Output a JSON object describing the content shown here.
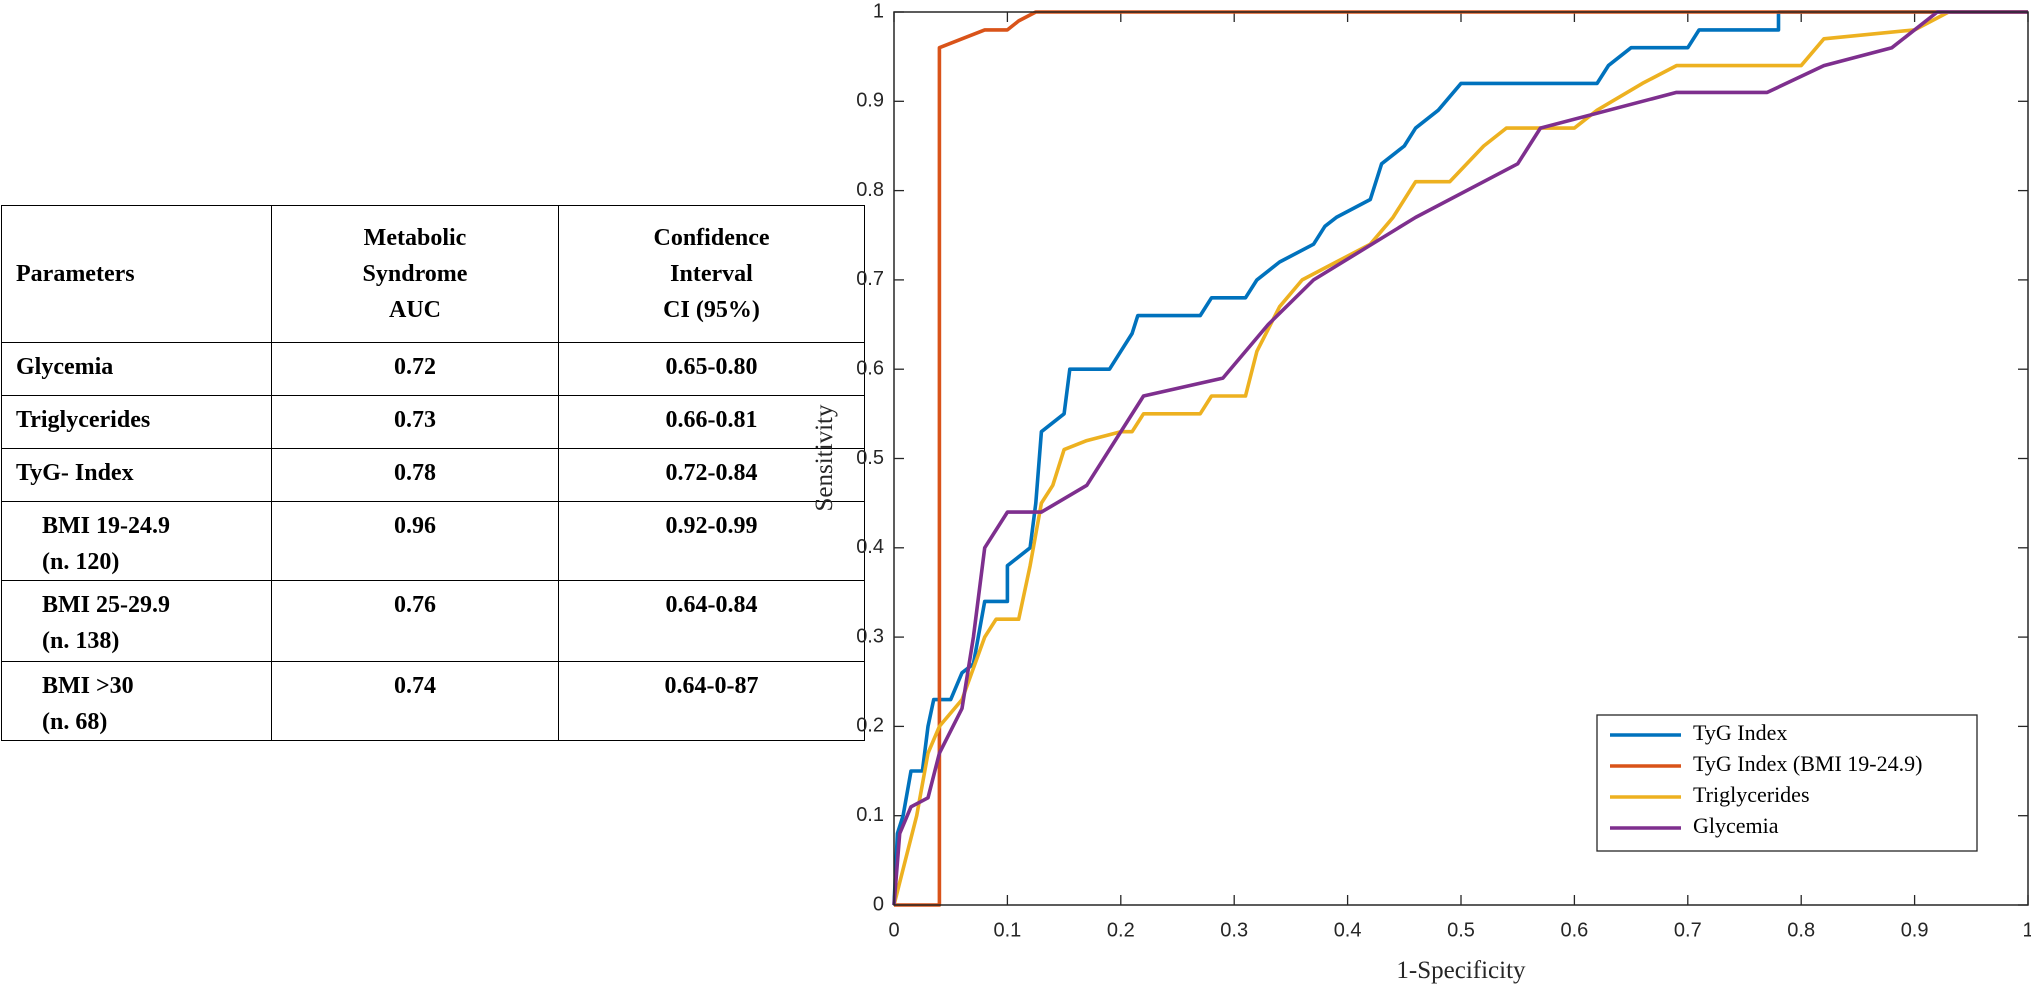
{
  "table": {
    "header": [
      "Parameters",
      [
        "Metabolic",
        "Syndrome",
        "AUC"
      ],
      [
        "Confidence",
        "Interval",
        "CI (95%)"
      ]
    ],
    "rows": [
      [
        [
          "Glycemia"
        ],
        [
          "0.72"
        ],
        [
          "0.65-0.80"
        ]
      ],
      [
        [
          "Triglycerides"
        ],
        [
          "0.73"
        ],
        [
          "0.66-0.81"
        ]
      ],
      [
        [
          "TyG- Index"
        ],
        [
          "0.78"
        ],
        [
          "0.72-0.84"
        ]
      ],
      [
        [
          "BMI 19-24.9",
          "(n. 120)"
        ],
        [
          "0.96"
        ],
        [
          "0.92-0.99"
        ]
      ],
      [
        [
          "BMI 25-29.9",
          "(n. 138)"
        ],
        [
          "0.76"
        ],
        [
          "0.64-0.84"
        ]
      ],
      [
        [
          "BMI >30",
          "(n. 68)"
        ],
        [
          "0.74"
        ],
        [
          "0.64-0-87"
        ]
      ]
    ]
  },
  "chart_data": {
    "type": "line",
    "x_label": "1-Specificity",
    "y_label": "Sensitivity",
    "xlim": [
      0,
      1
    ],
    "ylim": [
      0,
      1
    ],
    "xticks": [
      0,
      0.1,
      0.2,
      0.3,
      0.4,
      0.5,
      0.6,
      0.7,
      0.8,
      0.9,
      1
    ],
    "yticks": [
      0,
      0.1,
      0.2,
      0.3,
      0.4,
      0.5,
      0.6,
      0.7,
      0.8,
      0.9,
      1
    ],
    "legend": "southeast",
    "series": [
      {
        "name": "TyG Index",
        "color": "#0072BD",
        "x": [
          0,
          0.003,
          0.008,
          0.015,
          0.025,
          0.03,
          0.035,
          0.05,
          0.06,
          0.07,
          0.08,
          0.1,
          0.1,
          0.12,
          0.125,
          0.13,
          0.15,
          0.155,
          0.19,
          0.2,
          0.21,
          0.215,
          0.27,
          0.28,
          0.31,
          0.32,
          0.34,
          0.37,
          0.38,
          0.39,
          0.42,
          0.43,
          0.45,
          0.46,
          0.48,
          0.5,
          0.62,
          0.63,
          0.65,
          0.7,
          0.71,
          0.78,
          0.78,
          1
        ],
        "values": [
          0,
          0.08,
          0.1,
          0.15,
          0.15,
          0.2,
          0.23,
          0.23,
          0.26,
          0.27,
          0.34,
          0.34,
          0.38,
          0.4,
          0.45,
          0.53,
          0.55,
          0.6,
          0.6,
          0.62,
          0.64,
          0.66,
          0.66,
          0.68,
          0.68,
          0.7,
          0.72,
          0.74,
          0.76,
          0.77,
          0.79,
          0.83,
          0.85,
          0.87,
          0.89,
          0.92,
          0.92,
          0.94,
          0.96,
          0.96,
          0.98,
          0.98,
          1,
          1
        ]
      },
      {
        "name": "TyG Index (BMI 19-24.9)",
        "color": "#D95319",
        "x": [
          0,
          0.04,
          0.04,
          0.06,
          0.08,
          0.1,
          0.11,
          0.125,
          1
        ],
        "values": [
          0,
          0,
          0.96,
          0.97,
          0.98,
          0.98,
          0.99,
          1,
          1
        ]
      },
      {
        "name": "Triglycerides",
        "color": "#EDB120",
        "x": [
          0,
          0.01,
          0.02,
          0.03,
          0.04,
          0.06,
          0.08,
          0.09,
          0.11,
          0.12,
          0.13,
          0.14,
          0.15,
          0.17,
          0.2,
          0.21,
          0.22,
          0.27,
          0.28,
          0.31,
          0.32,
          0.34,
          0.36,
          0.39,
          0.42,
          0.44,
          0.46,
          0.49,
          0.52,
          0.54,
          0.6,
          0.62,
          0.66,
          0.69,
          0.8,
          0.82,
          0.9,
          0.93,
          1
        ],
        "values": [
          0,
          0.05,
          0.1,
          0.17,
          0.2,
          0.23,
          0.3,
          0.32,
          0.32,
          0.38,
          0.45,
          0.47,
          0.51,
          0.52,
          0.53,
          0.53,
          0.55,
          0.55,
          0.57,
          0.57,
          0.62,
          0.67,
          0.7,
          0.72,
          0.74,
          0.77,
          0.81,
          0.81,
          0.85,
          0.87,
          0.87,
          0.89,
          0.92,
          0.94,
          0.94,
          0.97,
          0.98,
          1,
          1
        ]
      },
      {
        "name": "Glycemia",
        "color": "#7E2F8E",
        "x": [
          0,
          0.005,
          0.015,
          0.03,
          0.04,
          0.06,
          0.07,
          0.08,
          0.1,
          0.13,
          0.17,
          0.22,
          0.29,
          0.33,
          0.37,
          0.46,
          0.55,
          0.57,
          0.69,
          0.77,
          0.82,
          0.88,
          0.92,
          1
        ],
        "values": [
          0,
          0.08,
          0.11,
          0.12,
          0.17,
          0.22,
          0.3,
          0.4,
          0.44,
          0.44,
          0.47,
          0.57,
          0.59,
          0.65,
          0.7,
          0.77,
          0.83,
          0.87,
          0.91,
          0.91,
          0.94,
          0.96,
          1,
          1
        ]
      }
    ]
  }
}
